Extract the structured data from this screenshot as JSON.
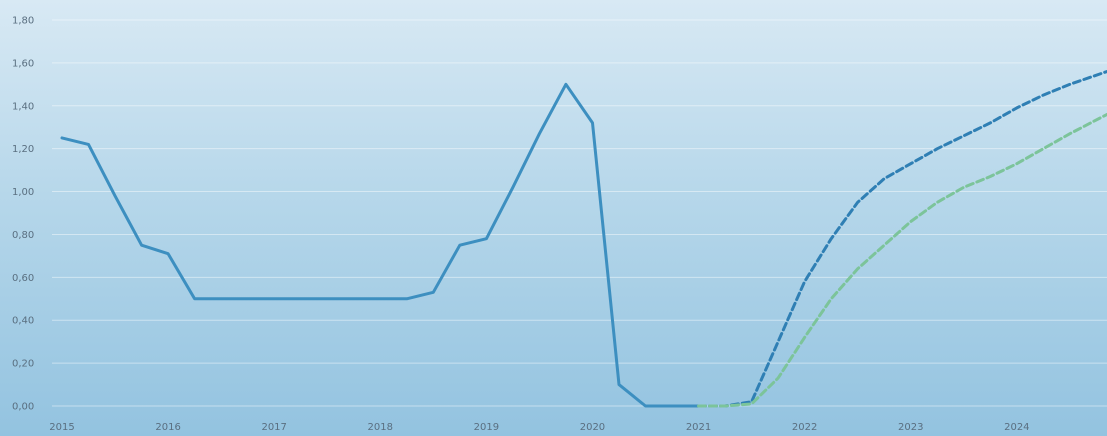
{
  "chart_data": {
    "type": "line",
    "title": "",
    "xlabel": "",
    "ylabel": "",
    "grid": true,
    "legend": "none",
    "xlim": [
      2015.0,
      2024.85
    ],
    "ylim": [
      0,
      1.8
    ],
    "y_ticks": [
      0,
      0.2,
      0.4,
      0.6,
      0.8,
      1.0,
      1.2,
      1.4,
      1.6,
      1.8
    ],
    "y_tick_labels": [
      "0,00",
      "0,20",
      "0,40",
      "0,60",
      "0,80",
      "1,00",
      "1,20",
      "1,40",
      "1,60",
      "1,80"
    ],
    "x_ticks": [
      2015,
      2016,
      2017,
      2018,
      2019,
      2020,
      2021,
      2022,
      2023,
      2024
    ],
    "x_tick_labels": [
      "2015",
      "2016",
      "2017",
      "2018",
      "2019",
      "2020",
      "2021",
      "2022",
      "2023",
      "2024"
    ],
    "series": [
      {
        "style": "solid",
        "color": "#3d8fc0",
        "points": [
          [
            2015.0,
            1.25
          ],
          [
            2015.25,
            1.22
          ],
          [
            2015.5,
            0.98
          ],
          [
            2015.75,
            0.75
          ],
          [
            2016.0,
            0.71
          ],
          [
            2016.25,
            0.5
          ],
          [
            2016.5,
            0.5
          ],
          [
            2016.75,
            0.5
          ],
          [
            2017.0,
            0.5
          ],
          [
            2017.25,
            0.5
          ],
          [
            2017.5,
            0.5
          ],
          [
            2017.75,
            0.5
          ],
          [
            2018.0,
            0.5
          ],
          [
            2018.25,
            0.5
          ],
          [
            2018.5,
            0.53
          ],
          [
            2018.75,
            0.75
          ],
          [
            2019.0,
            0.78
          ],
          [
            2019.25,
            1.02
          ],
          [
            2019.5,
            1.27
          ],
          [
            2019.75,
            1.5
          ],
          [
            2020.0,
            1.32
          ],
          [
            2020.25,
            0.1
          ],
          [
            2020.5,
            0.0
          ],
          [
            2020.75,
            0.0
          ],
          [
            2021.0,
            0.0
          ]
        ]
      },
      {
        "style": "dashed",
        "color": "#2f7fb4",
        "points": [
          [
            2021.0,
            0.0
          ],
          [
            2021.25,
            0.0
          ],
          [
            2021.5,
            0.02
          ],
          [
            2021.75,
            0.3
          ],
          [
            2022.0,
            0.58
          ],
          [
            2022.25,
            0.78
          ],
          [
            2022.5,
            0.95
          ],
          [
            2022.75,
            1.06
          ],
          [
            2023.0,
            1.13
          ],
          [
            2023.25,
            1.2
          ],
          [
            2023.5,
            1.26
          ],
          [
            2023.75,
            1.32
          ],
          [
            2024.0,
            1.39
          ],
          [
            2024.25,
            1.45
          ],
          [
            2024.5,
            1.5
          ],
          [
            2024.85,
            1.56
          ]
        ]
      },
      {
        "style": "dashed",
        "color": "#7cc49a",
        "points": [
          [
            2021.0,
            0.0
          ],
          [
            2021.25,
            0.0
          ],
          [
            2021.5,
            0.01
          ],
          [
            2021.75,
            0.13
          ],
          [
            2022.0,
            0.32
          ],
          [
            2022.25,
            0.5
          ],
          [
            2022.5,
            0.64
          ],
          [
            2022.75,
            0.75
          ],
          [
            2023.0,
            0.86
          ],
          [
            2023.25,
            0.95
          ],
          [
            2023.5,
            1.02
          ],
          [
            2023.75,
            1.07
          ],
          [
            2024.0,
            1.13
          ],
          [
            2024.25,
            1.2
          ],
          [
            2024.5,
            1.27
          ],
          [
            2024.85,
            1.36
          ]
        ]
      }
    ]
  }
}
